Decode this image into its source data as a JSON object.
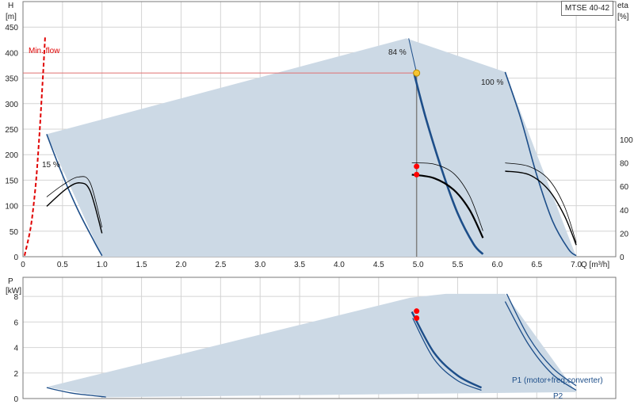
{
  "model": "MTSE 40-42",
  "colors": {
    "envelope": "#ccd9e5",
    "pump_curve": "#1d4e89",
    "duty_curve": "#000000",
    "min_flow": "#e00000",
    "duty_line": "#e07070",
    "duty_point": "#f7c531",
    "marker": "#ff0000"
  },
  "chart_data": [
    {
      "type": "line",
      "name": "head",
      "x_label": "Q [m³/h]",
      "y_label_left": [
        "H",
        "[m]"
      ],
      "y_label_right": [
        "eta",
        "[%]"
      ],
      "xlim": [
        0,
        7.5
      ],
      "ylim": [
        0,
        500
      ],
      "eta_lim": [
        0,
        100
      ],
      "x_ticks": [
        "0",
        "0.5",
        "1.0",
        "1.5",
        "2.0",
        "2.5",
        "3.0",
        "3.5",
        "4.0",
        "4.5",
        "5.0",
        "5.5",
        "6.0",
        "6.5",
        "7.0"
      ],
      "y_ticks": [
        "0",
        "50",
        "100",
        "150",
        "200",
        "250",
        "300",
        "350",
        "400",
        "450"
      ],
      "eta_ticks": [
        "0",
        "20",
        "40",
        "60",
        "80",
        "100"
      ],
      "min_flow_label": "Min. flow",
      "speed_labels": [
        "84 %",
        "100 %",
        "15 %"
      ],
      "envelope": [
        [
          0.3,
          240
        ],
        [
          4.85,
          428
        ],
        [
          6.1,
          362
        ],
        [
          7.0,
          0
        ],
        [
          1.0,
          0
        ],
        [
          0.3,
          240
        ]
      ],
      "curves": [
        {
          "name": "15 %",
          "points": [
            [
              0.3,
              240
            ],
            [
              0.5,
              160
            ],
            [
              0.7,
              90
            ],
            [
              0.9,
              30
            ],
            [
              1.0,
              2
            ]
          ]
        },
        {
          "name": "84 %",
          "points": [
            [
              4.95,
              358
            ],
            [
              5.1,
              270
            ],
            [
              5.3,
              170
            ],
            [
              5.5,
              85
            ],
            [
              5.7,
              25
            ],
            [
              5.82,
              5
            ]
          ]
        },
        {
          "name": "100 %",
          "points": [
            [
              6.1,
              362
            ],
            [
              6.3,
              270
            ],
            [
              6.5,
              160
            ],
            [
              6.7,
              70
            ],
            [
              6.9,
              15
            ],
            [
              7.0,
              2
            ]
          ]
        }
      ],
      "min_flow_curve": [
        [
          0.02,
          2
        ],
        [
          0.1,
          60
        ],
        [
          0.16,
          140
        ],
        [
          0.2,
          220
        ],
        [
          0.24,
          320
        ],
        [
          0.28,
          430
        ]
      ],
      "eta_curves": [
        {
          "points": [
            [
              0.3,
              51
            ],
            [
              0.5,
              61
            ],
            [
              0.7,
              68
            ],
            [
              0.85,
              63
            ],
            [
              1.0,
              25
            ]
          ]
        },
        {
          "points": [
            [
              0.3,
              43
            ],
            [
              0.55,
              58
            ],
            [
              0.72,
              63
            ],
            [
              0.85,
              56
            ],
            [
              1.0,
              20
            ]
          ]
        },
        {
          "points": [
            [
              4.92,
              80
            ],
            [
              5.2,
              79
            ],
            [
              5.45,
              71
            ],
            [
              5.65,
              52
            ],
            [
              5.82,
              22
            ]
          ]
        },
        {
          "points": [
            [
              4.92,
              70
            ],
            [
              5.2,
              67
            ],
            [
              5.45,
              57
            ],
            [
              5.65,
              40
            ],
            [
              5.82,
              16
            ]
          ]
        },
        {
          "points": [
            [
              6.1,
              80
            ],
            [
              6.4,
              77
            ],
            [
              6.65,
              66
            ],
            [
              6.85,
              43
            ],
            [
              7.0,
              12
            ]
          ]
        },
        {
          "points": [
            [
              6.1,
              73
            ],
            [
              6.4,
              70
            ],
            [
              6.65,
              57
            ],
            [
              6.85,
              35
            ],
            [
              7.0,
              10
            ]
          ]
        }
      ],
      "duty_point": {
        "q": 4.98,
        "h": 360
      },
      "eta_points": [
        [
          4.98,
          77
        ],
        [
          4.98,
          70
        ]
      ]
    },
    {
      "type": "line",
      "name": "power",
      "y_label": [
        "P",
        "[kW]"
      ],
      "xlim": [
        0,
        7.5
      ],
      "ylim": [
        0,
        9.5
      ],
      "y_ticks": [
        "0",
        "2",
        "4",
        "6",
        "8"
      ],
      "legend": [
        "P1 (motor+freq.converter)",
        "P2"
      ],
      "envelope": [
        [
          0.3,
          0.9
        ],
        [
          4.9,
          7.9
        ],
        [
          5.35,
          8.2
        ],
        [
          6.1,
          8.2
        ],
        [
          7.0,
          0.5
        ],
        [
          1.05,
          0.1
        ],
        [
          0.3,
          0.9
        ]
      ],
      "curves": [
        {
          "name": "P1",
          "points": [
            [
              0.3,
              0.85
            ],
            [
              0.6,
              0.45
            ],
            [
              0.85,
              0.25
            ],
            [
              1.05,
              0.12
            ]
          ]
        },
        {
          "name": "P1",
          "points": [
            [
              4.92,
              6.8
            ],
            [
              5.2,
              3.6
            ],
            [
              5.5,
              1.8
            ],
            [
              5.8,
              0.85
            ]
          ]
        },
        {
          "name": "P1",
          "points": [
            [
              6.12,
              8.2
            ],
            [
              6.4,
              4.8
            ],
            [
              6.7,
              2.4
            ],
            [
              7.0,
              1.0
            ]
          ]
        },
        {
          "name": "P2",
          "points": [
            [
              4.93,
              6.3
            ],
            [
              5.2,
              3.1
            ],
            [
              5.5,
              1.4
            ],
            [
              5.8,
              0.65
            ]
          ]
        },
        {
          "name": "P2",
          "points": [
            [
              6.1,
              7.6
            ],
            [
              6.4,
              4.2
            ],
            [
              6.7,
              1.9
            ],
            [
              7.0,
              0.65
            ]
          ]
        }
      ],
      "points": [
        [
          4.98,
          6.85
        ],
        [
          4.98,
          6.3
        ]
      ]
    }
  ]
}
